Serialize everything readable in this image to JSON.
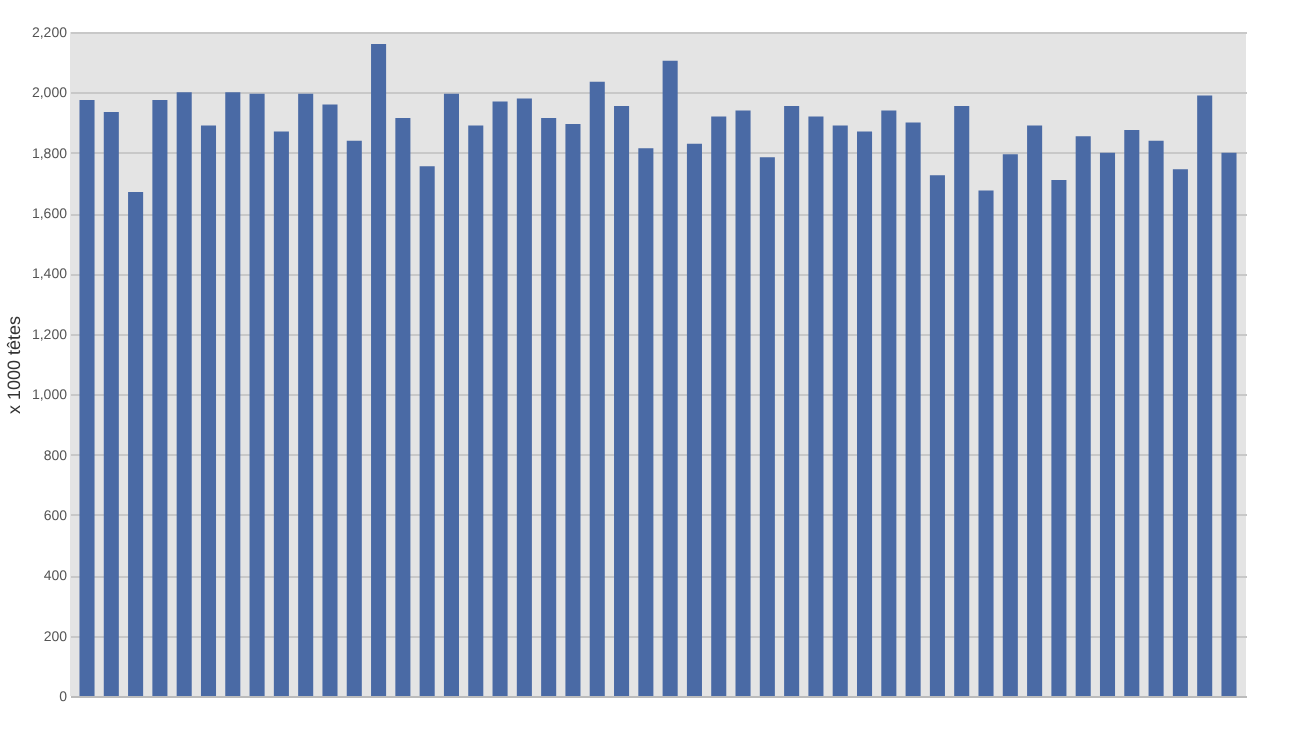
{
  "chart_data": {
    "type": "bar",
    "ylabel": "x 1000 têtes",
    "categories": [
      null,
      null,
      null,
      null,
      null,
      null,
      null,
      null,
      null,
      null,
      null,
      null,
      null,
      null,
      null,
      null,
      null,
      null,
      null,
      null,
      null,
      null,
      null,
      null,
      null,
      null,
      null,
      null,
      null,
      null,
      null,
      null,
      null,
      null,
      null,
      null,
      null,
      null,
      null,
      null,
      null,
      null,
      null,
      null,
      null,
      null,
      null,
      null
    ],
    "values": [
      1975,
      1935,
      1670,
      1975,
      2000,
      1890,
      2000,
      1995,
      1870,
      1995,
      1960,
      1840,
      2160,
      1915,
      1755,
      1995,
      1890,
      1970,
      1980,
      1915,
      1895,
      2035,
      1955,
      1815,
      2105,
      1830,
      1920,
      1940,
      1785,
      1955,
      1920,
      1890,
      1870,
      1940,
      1900,
      1725,
      1955,
      1675,
      1795,
      1890,
      1710,
      1855,
      1800,
      1875,
      1840,
      1745,
      1990,
      1800
    ],
    "color": "#4a6aa5",
    "ylim": [
      0,
      2200
    ],
    "yticks": [
      0,
      {
        "value": 200,
        "label": "200"
      },
      {
        "value": 400,
        "label": "400"
      },
      {
        "value": 600,
        "label": "600"
      },
      {
        "value": 800,
        "label": "800"
      },
      {
        "value": 1000,
        "label": "1,000"
      },
      {
        "value": 1200,
        "label": "1,200"
      },
      {
        "value": 1400,
        "label": "1,400"
      },
      {
        "value": 1600,
        "label": "1,600"
      },
      {
        "value": 1800,
        "label": "1,800"
      },
      {
        "value": 2000,
        "label": "2,000"
      },
      {
        "value": 2200,
        "label": "2,200"
      }
    ],
    "grid": "y"
  }
}
